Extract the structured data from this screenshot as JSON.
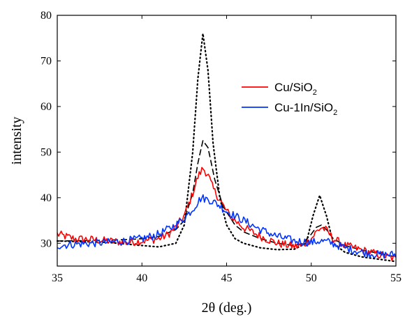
{
  "chart_data": {
    "type": "line",
    "title": "",
    "xlabel": "2θ (deg.)",
    "ylabel": "intensity",
    "xlim": [
      35,
      55
    ],
    "ylim": [
      25,
      80
    ],
    "xticks": [
      35,
      40,
      45,
      50,
      55
    ],
    "yticks": [
      30,
      40,
      50,
      60,
      70,
      80
    ],
    "grid": false,
    "legend_position": "top-right",
    "series": [
      {
        "name": "Cu/SiO2",
        "legend_main": "Cu/SiO",
        "legend_sub": "2",
        "color": "#ff0000",
        "style": "solid",
        "x": [
          35,
          36,
          37,
          38,
          39,
          40,
          41,
          41.5,
          42,
          42.5,
          43,
          43.3,
          43.6,
          43.9,
          44.2,
          44.6,
          45,
          45.5,
          46,
          47,
          48,
          49,
          49.5,
          50,
          50.3,
          50.6,
          50.9,
          51.3,
          52,
          53,
          54,
          55
        ],
        "y": [
          32,
          31,
          30.8,
          30.5,
          30.2,
          30.5,
          31,
          31.8,
          33.5,
          36,
          41,
          44.5,
          46.5,
          45,
          42,
          39.5,
          37,
          35,
          33.5,
          31.5,
          30,
          29.3,
          29.5,
          31,
          32.5,
          33.5,
          32.8,
          31,
          29.5,
          28.5,
          27.5,
          26.5
        ]
      },
      {
        "name": "Cu-1In/SiO2",
        "legend_main": "Cu-1In/SiO",
        "legend_sub": "2",
        "color": "#0033ff",
        "style": "solid",
        "x": [
          35,
          36,
          37,
          38,
          39,
          40,
          41,
          42,
          42.5,
          43,
          43.5,
          44,
          44.5,
          45,
          45.5,
          46,
          47,
          48,
          49,
          50,
          50.5,
          51,
          52,
          53,
          54,
          55
        ],
        "y": [
          29.5,
          29.8,
          30,
          30.2,
          30.5,
          31,
          32,
          34,
          35.5,
          37.5,
          40,
          39.5,
          38.5,
          37,
          36,
          35,
          33,
          31.5,
          30.5,
          30.2,
          30.5,
          30.3,
          29,
          28,
          27.5,
          27.5
        ]
      },
      {
        "name": "",
        "color": "#000000",
        "style": "dashed",
        "x": [
          35,
          37,
          39,
          40,
          41,
          42,
          42.5,
          43,
          43.3,
          43.6,
          43.9,
          44.3,
          44.8,
          45.5,
          46,
          47,
          48,
          49,
          49.5,
          50,
          50.3,
          50.6,
          50.9,
          51.3,
          52,
          53,
          54,
          55
        ],
        "y": [
          30.5,
          30.6,
          30.8,
          31,
          31.5,
          33,
          35,
          41,
          47.5,
          52.5,
          51,
          44,
          38,
          34,
          32.5,
          31,
          30,
          29.5,
          30,
          32,
          33.5,
          34,
          33,
          31,
          29.5,
          28.5,
          27.8,
          27
        ]
      },
      {
        "name": "",
        "color": "#000000",
        "style": "dotted",
        "x": [
          35,
          38,
          40,
          41,
          42,
          42.5,
          43,
          43.3,
          43.6,
          43.9,
          44.2,
          44.6,
          45,
          45.5,
          46,
          47,
          48,
          49,
          49.7,
          50.1,
          50.5,
          50.9,
          51.3,
          52,
          53,
          55
        ],
        "y": [
          30.5,
          30.2,
          29.5,
          29.2,
          30,
          34,
          50,
          66,
          76,
          68,
          52,
          40,
          34,
          31,
          30,
          29,
          28.6,
          28.7,
          30,
          36,
          40.5,
          36,
          30,
          28,
          27,
          26
        ]
      }
    ]
  }
}
